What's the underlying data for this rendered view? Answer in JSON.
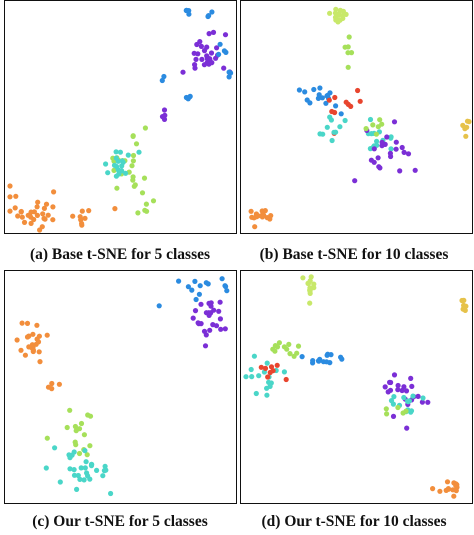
{
  "figure": {
    "captions": [
      "(a) Base t-SNE for 5 classes",
      "(b) Base t-SNE for 10 classes",
      "(c) Our t-SNE for 5 classes",
      "(d) Our t-SNE for 10 classes"
    ]
  },
  "class_colors": {
    "orange": "#f28e3c",
    "light-green": "#a6e05a",
    "cyan": "#4ad6c8",
    "purple": "#7b2fd6",
    "blue": "#2b8be0",
    "yellow-green": "#c8e86a",
    "red": "#e8452e",
    "yellow": "#e6c24a"
  },
  "chart_data": [
    {
      "type": "scatter",
      "title": "(a) Base t-SNE for 5 classes",
      "xlabel": "",
      "ylabel": "",
      "xlim": [
        0,
        1
      ],
      "ylim": [
        0,
        1
      ],
      "grid": false,
      "clusters": [
        {
          "color": "orange",
          "cx": 0.12,
          "cy": 0.08,
          "sx": 0.09,
          "sy": 0.04,
          "n": 34
        },
        {
          "color": "orange",
          "cx": 0.33,
          "cy": 0.05,
          "sx": 0.02,
          "sy": 0.02,
          "n": 6
        },
        {
          "color": "light-green",
          "cx": 0.52,
          "cy": 0.3,
          "sx": 0.05,
          "sy": 0.07,
          "n": 22
        },
        {
          "color": "light-green",
          "cx": 0.61,
          "cy": 0.1,
          "sx": 0.03,
          "sy": 0.02,
          "n": 6
        },
        {
          "color": "cyan",
          "cx": 0.48,
          "cy": 0.28,
          "sx": 0.04,
          "sy": 0.05,
          "n": 18
        },
        {
          "color": "purple",
          "cx": 0.87,
          "cy": 0.78,
          "sx": 0.05,
          "sy": 0.05,
          "n": 30
        },
        {
          "color": "purple",
          "cx": 0.69,
          "cy": 0.5,
          "sx": 0.01,
          "sy": 0.02,
          "n": 4
        },
        {
          "color": "blue",
          "cx": 0.8,
          "cy": 0.98,
          "sx": 0.01,
          "sy": 0.01,
          "n": 4
        },
        {
          "color": "blue",
          "cx": 0.9,
          "cy": 0.96,
          "sx": 0.01,
          "sy": 0.01,
          "n": 4
        },
        {
          "color": "blue",
          "cx": 0.95,
          "cy": 0.81,
          "sx": 0.01,
          "sy": 0.02,
          "n": 4
        },
        {
          "color": "blue",
          "cx": 0.8,
          "cy": 0.59,
          "sx": 0.01,
          "sy": 0.01,
          "n": 4
        },
        {
          "color": "blue",
          "cx": 0.99,
          "cy": 0.7,
          "sx": 0.01,
          "sy": 0.01,
          "n": 3
        },
        {
          "color": "blue",
          "cx": 0.68,
          "cy": 0.67,
          "sx": 0.01,
          "sy": 0.01,
          "n": 2
        }
      ]
    },
    {
      "type": "scatter",
      "title": "(b) Base t-SNE for 10 classes",
      "xlabel": "",
      "ylabel": "",
      "xlim": [
        0,
        1
      ],
      "ylim": [
        0,
        1
      ],
      "grid": false,
      "clusters": [
        {
          "color": "yellow-green",
          "cx": 0.42,
          "cy": 0.96,
          "sx": 0.02,
          "sy": 0.02,
          "n": 16
        },
        {
          "color": "light-green",
          "cx": 0.46,
          "cy": 0.79,
          "sx": 0.01,
          "sy": 0.04,
          "n": 6
        },
        {
          "color": "blue",
          "cx": 0.34,
          "cy": 0.59,
          "sx": 0.05,
          "sy": 0.03,
          "n": 16
        },
        {
          "color": "red",
          "cx": 0.43,
          "cy": 0.58,
          "sx": 0.05,
          "sy": 0.06,
          "n": 10
        },
        {
          "color": "cyan",
          "cx": 0.4,
          "cy": 0.45,
          "sx": 0.03,
          "sy": 0.03,
          "n": 10
        },
        {
          "color": "cyan",
          "cx": 0.58,
          "cy": 0.42,
          "sx": 0.04,
          "sy": 0.03,
          "n": 14
        },
        {
          "color": "purple",
          "cx": 0.65,
          "cy": 0.36,
          "sx": 0.06,
          "sy": 0.04,
          "n": 22
        },
        {
          "color": "light-green",
          "cx": 0.57,
          "cy": 0.46,
          "sx": 0.03,
          "sy": 0.02,
          "n": 6
        },
        {
          "color": "yellow",
          "cx": 0.99,
          "cy": 0.46,
          "sx": 0.01,
          "sy": 0.02,
          "n": 6
        },
        {
          "color": "orange",
          "cx": 0.06,
          "cy": 0.06,
          "sx": 0.03,
          "sy": 0.02,
          "n": 16
        }
      ]
    },
    {
      "type": "scatter",
      "title": "(c) Our t-SNE for 5 classes",
      "xlabel": "",
      "ylabel": "",
      "xlim": [
        0,
        1
      ],
      "ylim": [
        0,
        1
      ],
      "grid": false,
      "clusters": [
        {
          "color": "blue",
          "cx": 0.84,
          "cy": 0.94,
          "sx": 0.04,
          "sy": 0.03,
          "n": 10
        },
        {
          "color": "blue",
          "cx": 0.97,
          "cy": 0.95,
          "sx": 0.01,
          "sy": 0.02,
          "n": 4
        },
        {
          "color": "purple",
          "cx": 0.9,
          "cy": 0.82,
          "sx": 0.04,
          "sy": 0.05,
          "n": 26
        },
        {
          "color": "orange",
          "cx": 0.09,
          "cy": 0.71,
          "sx": 0.04,
          "sy": 0.04,
          "n": 22
        },
        {
          "color": "orange",
          "cx": 0.19,
          "cy": 0.52,
          "sx": 0.01,
          "sy": 0.02,
          "n": 4
        },
        {
          "color": "light-green",
          "cx": 0.32,
          "cy": 0.28,
          "sx": 0.07,
          "sy": 0.06,
          "n": 16
        },
        {
          "color": "cyan",
          "cx": 0.33,
          "cy": 0.12,
          "sx": 0.07,
          "sy": 0.05,
          "n": 30
        }
      ]
    },
    {
      "type": "scatter",
      "title": "(d) Our t-SNE for 10 classes",
      "xlabel": "",
      "ylabel": "",
      "xlim": [
        0,
        1
      ],
      "ylim": [
        0,
        1
      ],
      "grid": false,
      "clusters": [
        {
          "color": "yellow-green",
          "cx": 0.29,
          "cy": 0.96,
          "sx": 0.02,
          "sy": 0.02,
          "n": 14
        },
        {
          "color": "yellow",
          "cx": 0.98,
          "cy": 0.86,
          "sx": 0.01,
          "sy": 0.02,
          "n": 6
        },
        {
          "color": "light-green",
          "cx": 0.17,
          "cy": 0.67,
          "sx": 0.05,
          "sy": 0.03,
          "n": 12
        },
        {
          "color": "blue",
          "cx": 0.34,
          "cy": 0.63,
          "sx": 0.05,
          "sy": 0.02,
          "n": 14
        },
        {
          "color": "cyan",
          "cx": 0.09,
          "cy": 0.55,
          "sx": 0.04,
          "sy": 0.04,
          "n": 16
        },
        {
          "color": "red",
          "cx": 0.12,
          "cy": 0.56,
          "sx": 0.03,
          "sy": 0.04,
          "n": 8
        },
        {
          "color": "purple",
          "cx": 0.72,
          "cy": 0.48,
          "sx": 0.06,
          "sy": 0.05,
          "n": 22
        },
        {
          "color": "cyan",
          "cx": 0.72,
          "cy": 0.42,
          "sx": 0.04,
          "sy": 0.03,
          "n": 14
        },
        {
          "color": "light-green",
          "cx": 0.67,
          "cy": 0.4,
          "sx": 0.03,
          "sy": 0.02,
          "n": 5
        },
        {
          "color": "orange",
          "cx": 0.91,
          "cy": 0.05,
          "sx": 0.03,
          "sy": 0.02,
          "n": 14
        }
      ]
    }
  ]
}
